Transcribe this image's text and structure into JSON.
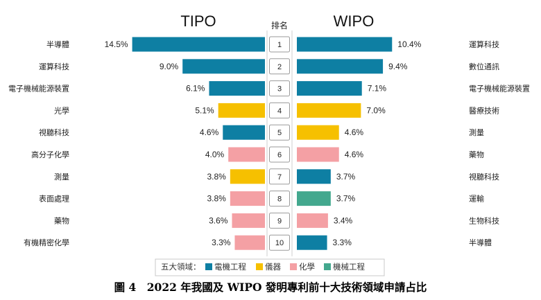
{
  "chart_data": {
    "type": "bar",
    "orientation": "horizontal-butterfly",
    "left_title": "TIPO",
    "right_title": "WIPO",
    "center_title": "排名",
    "ranks": [
      "1",
      "2",
      "3",
      "4",
      "5",
      "6",
      "7",
      "8",
      "9",
      "10"
    ],
    "tipo": [
      {
        "label": "半導體",
        "value": 14.5,
        "value_label": "14.5%",
        "field": "電機工程"
      },
      {
        "label": "運算科技",
        "value": 9.0,
        "value_label": "9.0%",
        "field": "電機工程"
      },
      {
        "label": "電子機械能源裝置",
        "value": 6.1,
        "value_label": "6.1%",
        "field": "電機工程"
      },
      {
        "label": "光學",
        "value": 5.1,
        "value_label": "5.1%",
        "field": "儀器"
      },
      {
        "label": "視聽科技",
        "value": 4.6,
        "value_label": "4.6%",
        "field": "電機工程"
      },
      {
        "label": "高分子化學",
        "value": 4.0,
        "value_label": "4.0%",
        "field": "化學"
      },
      {
        "label": "測量",
        "value": 3.8,
        "value_label": "3.8%",
        "field": "儀器"
      },
      {
        "label": "表面處理",
        "value": 3.8,
        "value_label": "3.8%",
        "field": "化學"
      },
      {
        "label": "藥物",
        "value": 3.6,
        "value_label": "3.6%",
        "field": "化學"
      },
      {
        "label": "有機精密化學",
        "value": 3.3,
        "value_label": "3.3%",
        "field": "化學"
      }
    ],
    "wipo": [
      {
        "label": "運算科技",
        "value": 10.4,
        "value_label": "10.4%",
        "field": "電機工程"
      },
      {
        "label": "數位通訊",
        "value": 9.4,
        "value_label": "9.4%",
        "field": "電機工程"
      },
      {
        "label": "電子機械能源裝置",
        "value": 7.1,
        "value_label": "7.1%",
        "field": "電機工程"
      },
      {
        "label": "醫療技術",
        "value": 7.0,
        "value_label": "7.0%",
        "field": "儀器"
      },
      {
        "label": "測量",
        "value": 4.6,
        "value_label": "4.6%",
        "field": "儀器"
      },
      {
        "label": "藥物",
        "value": 4.6,
        "value_label": "4.6%",
        "field": "化學"
      },
      {
        "label": "視聽科技",
        "value": 3.7,
        "value_label": "3.7%",
        "field": "電機工程"
      },
      {
        "label": "運輸",
        "value": 3.7,
        "value_label": "3.7%",
        "field": "機械工程"
      },
      {
        "label": "生物科技",
        "value": 3.4,
        "value_label": "3.4%",
        "field": "化學"
      },
      {
        "label": "半導體",
        "value": 3.3,
        "value_label": "3.3%",
        "field": "電機工程"
      }
    ],
    "legend": {
      "prefix": "五大領域：",
      "items": [
        {
          "name": "電機工程",
          "color": "#0e7fa3"
        },
        {
          "name": "儀器",
          "color": "#f6c000"
        },
        {
          "name": "化學",
          "color": "#f4a0a4"
        },
        {
          "name": "機械工程",
          "color": "#43a88e"
        }
      ]
    }
  },
  "caption": "圖 4　2022 年我國及 WIPO 發明專利前十大技術領域申請占比"
}
